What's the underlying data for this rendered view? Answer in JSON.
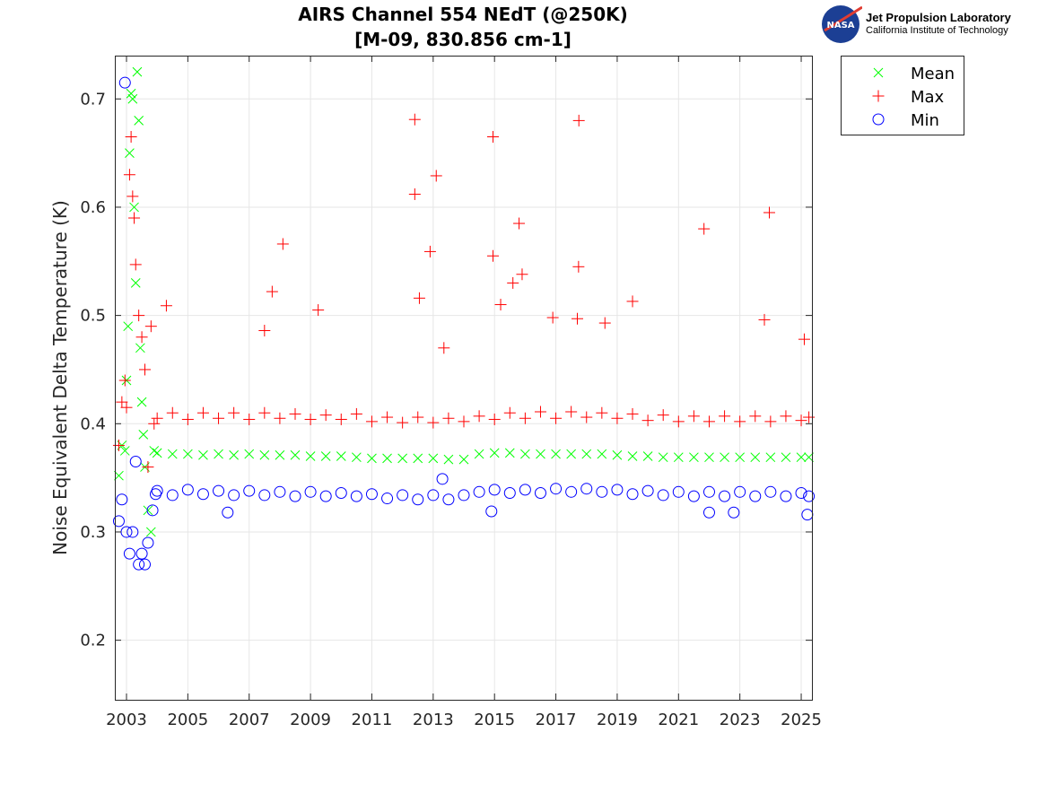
{
  "logo": {
    "org": "Jet Propulsion Laboratory",
    "sub": "California Institute of Technology",
    "badge": "NASA"
  },
  "chart_data": {
    "type": "scatter",
    "title": [
      "AIRS Channel 554 NEdT (@250K)",
      "[M-09, 830.856 cm-1]"
    ],
    "xlabel": "",
    "ylabel": "Noise Equivalent Delta Temperature (K)",
    "xlim": [
      2002.62,
      2025.35
    ],
    "ylim": [
      0.145,
      0.74
    ],
    "xticks": [
      2003,
      2005,
      2007,
      2009,
      2011,
      2013,
      2015,
      2017,
      2019,
      2021,
      2023,
      2025
    ],
    "yticks": [
      0.2,
      0.3,
      0.4,
      0.5,
      0.6,
      0.7
    ],
    "grid": true,
    "legend_position": "outside-top-right",
    "series": [
      {
        "name": "Mean",
        "marker": "x",
        "color": "#00ff00",
        "points": [
          [
            2002.75,
            0.352
          ],
          [
            2002.85,
            0.38
          ],
          [
            2002.95,
            0.375
          ],
          [
            2003.0,
            0.44
          ],
          [
            2003.05,
            0.49
          ],
          [
            2003.1,
            0.65
          ],
          [
            2003.15,
            0.705
          ],
          [
            2003.2,
            0.7
          ],
          [
            2003.25,
            0.6
          ],
          [
            2003.3,
            0.53
          ],
          [
            2003.35,
            0.725
          ],
          [
            2003.4,
            0.68
          ],
          [
            2003.45,
            0.47
          ],
          [
            2003.5,
            0.42
          ],
          [
            2003.55,
            0.39
          ],
          [
            2003.6,
            0.36
          ],
          [
            2003.7,
            0.32
          ],
          [
            2003.8,
            0.3
          ],
          [
            2003.9,
            0.375
          ],
          [
            2004.0,
            0.373
          ],
          [
            2004.5,
            0.372
          ],
          [
            2005.0,
            0.372
          ],
          [
            2005.5,
            0.371
          ],
          [
            2006.0,
            0.372
          ],
          [
            2006.5,
            0.371
          ],
          [
            2007.0,
            0.372
          ],
          [
            2007.5,
            0.371
          ],
          [
            2008.0,
            0.371
          ],
          [
            2008.5,
            0.371
          ],
          [
            2009.0,
            0.37
          ],
          [
            2009.5,
            0.37
          ],
          [
            2010.0,
            0.37
          ],
          [
            2010.5,
            0.369
          ],
          [
            2011.0,
            0.368
          ],
          [
            2011.5,
            0.368
          ],
          [
            2012.0,
            0.368
          ],
          [
            2012.5,
            0.368
          ],
          [
            2013.0,
            0.368
          ],
          [
            2013.5,
            0.367
          ],
          [
            2014.0,
            0.367
          ],
          [
            2014.5,
            0.372
          ],
          [
            2015.0,
            0.373
          ],
          [
            2015.5,
            0.373
          ],
          [
            2016.0,
            0.372
          ],
          [
            2016.5,
            0.372
          ],
          [
            2017.0,
            0.372
          ],
          [
            2017.5,
            0.372
          ],
          [
            2018.0,
            0.372
          ],
          [
            2018.5,
            0.372
          ],
          [
            2019.0,
            0.371
          ],
          [
            2019.5,
            0.37
          ],
          [
            2020.0,
            0.37
          ],
          [
            2020.5,
            0.369
          ],
          [
            2021.0,
            0.369
          ],
          [
            2021.5,
            0.369
          ],
          [
            2022.0,
            0.369
          ],
          [
            2022.5,
            0.369
          ],
          [
            2023.0,
            0.369
          ],
          [
            2023.5,
            0.369
          ],
          [
            2024.0,
            0.369
          ],
          [
            2024.5,
            0.369
          ],
          [
            2025.0,
            0.369
          ],
          [
            2025.25,
            0.369
          ]
        ]
      },
      {
        "name": "Max",
        "marker": "+",
        "color": "#ff0000",
        "points": [
          [
            2002.75,
            0.38
          ],
          [
            2002.85,
            0.42
          ],
          [
            2002.95,
            0.44
          ],
          [
            2003.0,
            0.415
          ],
          [
            2003.1,
            0.63
          ],
          [
            2003.15,
            0.665
          ],
          [
            2003.2,
            0.61
          ],
          [
            2003.25,
            0.59
          ],
          [
            2003.3,
            0.547
          ],
          [
            2003.4,
            0.5
          ],
          [
            2003.5,
            0.48
          ],
          [
            2003.6,
            0.45
          ],
          [
            2003.7,
            0.36
          ],
          [
            2003.8,
            0.49
          ],
          [
            2003.9,
            0.4
          ],
          [
            2004.0,
            0.405
          ],
          [
            2004.5,
            0.41
          ],
          [
            2005.0,
            0.404
          ],
          [
            2005.5,
            0.41
          ],
          [
            2006.0,
            0.405
          ],
          [
            2006.5,
            0.41
          ],
          [
            2007.0,
            0.404
          ],
          [
            2007.5,
            0.41
          ],
          [
            2008.0,
            0.405
          ],
          [
            2008.5,
            0.409
          ],
          [
            2009.0,
            0.404
          ],
          [
            2009.5,
            0.408
          ],
          [
            2010.0,
            0.404
          ],
          [
            2010.5,
            0.409
          ],
          [
            2011.0,
            0.402
          ],
          [
            2011.5,
            0.406
          ],
          [
            2012.0,
            0.401
          ],
          [
            2012.5,
            0.406
          ],
          [
            2013.0,
            0.401
          ],
          [
            2013.5,
            0.405
          ],
          [
            2014.0,
            0.402
          ],
          [
            2014.5,
            0.407
          ],
          [
            2015.0,
            0.404
          ],
          [
            2015.5,
            0.41
          ],
          [
            2016.0,
            0.405
          ],
          [
            2016.5,
            0.411
          ],
          [
            2017.0,
            0.405
          ],
          [
            2017.5,
            0.411
          ],
          [
            2018.0,
            0.406
          ],
          [
            2018.5,
            0.41
          ],
          [
            2019.0,
            0.405
          ],
          [
            2019.5,
            0.409
          ],
          [
            2020.0,
            0.403
          ],
          [
            2020.5,
            0.408
          ],
          [
            2021.0,
            0.402
          ],
          [
            2021.5,
            0.407
          ],
          [
            2022.0,
            0.402
          ],
          [
            2022.5,
            0.407
          ],
          [
            2023.0,
            0.402
          ],
          [
            2023.5,
            0.407
          ],
          [
            2024.0,
            0.402
          ],
          [
            2024.5,
            0.407
          ],
          [
            2025.0,
            0.403
          ],
          [
            2025.25,
            0.406
          ],
          [
            2004.3,
            0.509
          ],
          [
            2007.5,
            0.486
          ],
          [
            2007.75,
            0.522
          ],
          [
            2008.1,
            0.566
          ],
          [
            2009.25,
            0.505
          ],
          [
            2012.4,
            0.681
          ],
          [
            2012.4,
            0.612
          ],
          [
            2012.55,
            0.516
          ],
          [
            2012.9,
            0.559
          ],
          [
            2013.1,
            0.629
          ],
          [
            2013.35,
            0.47
          ],
          [
            2014.95,
            0.665
          ],
          [
            2014.95,
            0.555
          ],
          [
            2015.2,
            0.51
          ],
          [
            2015.6,
            0.53
          ],
          [
            2015.8,
            0.585
          ],
          [
            2015.9,
            0.538
          ],
          [
            2016.9,
            0.498
          ],
          [
            2017.75,
            0.68
          ],
          [
            2017.74,
            0.545
          ],
          [
            2017.7,
            0.497
          ],
          [
            2018.6,
            0.493
          ],
          [
            2019.5,
            0.513
          ],
          [
            2021.83,
            0.58
          ],
          [
            2023.8,
            0.496
          ],
          [
            2023.96,
            0.595
          ],
          [
            2025.1,
            0.478
          ]
        ]
      },
      {
        "name": "Min",
        "marker": "o",
        "color": "#0000ff",
        "points": [
          [
            2002.75,
            0.31
          ],
          [
            2002.85,
            0.33
          ],
          [
            2002.95,
            0.715
          ],
          [
            2003.0,
            0.3
          ],
          [
            2003.1,
            0.28
          ],
          [
            2003.2,
            0.3
          ],
          [
            2003.3,
            0.365
          ],
          [
            2003.4,
            0.27
          ],
          [
            2003.5,
            0.28
          ],
          [
            2003.6,
            0.27
          ],
          [
            2003.7,
            0.29
          ],
          [
            2003.85,
            0.32
          ],
          [
            2003.95,
            0.335
          ],
          [
            2004.0,
            0.338
          ],
          [
            2004.5,
            0.334
          ],
          [
            2005.0,
            0.339
          ],
          [
            2005.5,
            0.335
          ],
          [
            2006.0,
            0.338
          ],
          [
            2006.5,
            0.334
          ],
          [
            2007.0,
            0.338
          ],
          [
            2007.5,
            0.334
          ],
          [
            2008.0,
            0.337
          ],
          [
            2008.5,
            0.333
          ],
          [
            2009.0,
            0.337
          ],
          [
            2009.5,
            0.333
          ],
          [
            2010.0,
            0.336
          ],
          [
            2010.5,
            0.333
          ],
          [
            2011.0,
            0.335
          ],
          [
            2011.5,
            0.331
          ],
          [
            2012.0,
            0.334
          ],
          [
            2012.5,
            0.33
          ],
          [
            2013.0,
            0.334
          ],
          [
            2013.5,
            0.33
          ],
          [
            2014.0,
            0.334
          ],
          [
            2014.5,
            0.337
          ],
          [
            2015.0,
            0.339
          ],
          [
            2015.5,
            0.336
          ],
          [
            2016.0,
            0.339
          ],
          [
            2016.5,
            0.336
          ],
          [
            2017.0,
            0.34
          ],
          [
            2017.5,
            0.337
          ],
          [
            2018.0,
            0.34
          ],
          [
            2018.5,
            0.337
          ],
          [
            2019.0,
            0.339
          ],
          [
            2019.5,
            0.335
          ],
          [
            2020.0,
            0.338
          ],
          [
            2020.5,
            0.334
          ],
          [
            2021.0,
            0.337
          ],
          [
            2021.5,
            0.333
          ],
          [
            2022.0,
            0.337
          ],
          [
            2022.5,
            0.333
          ],
          [
            2023.0,
            0.337
          ],
          [
            2023.5,
            0.333
          ],
          [
            2024.0,
            0.337
          ],
          [
            2024.5,
            0.333
          ],
          [
            2025.0,
            0.336
          ],
          [
            2025.25,
            0.333
          ],
          [
            2006.3,
            0.318
          ],
          [
            2013.3,
            0.349
          ],
          [
            2014.9,
            0.319
          ],
          [
            2022.0,
            0.318
          ],
          [
            2022.8,
            0.318
          ],
          [
            2025.2,
            0.316
          ]
        ]
      }
    ]
  }
}
